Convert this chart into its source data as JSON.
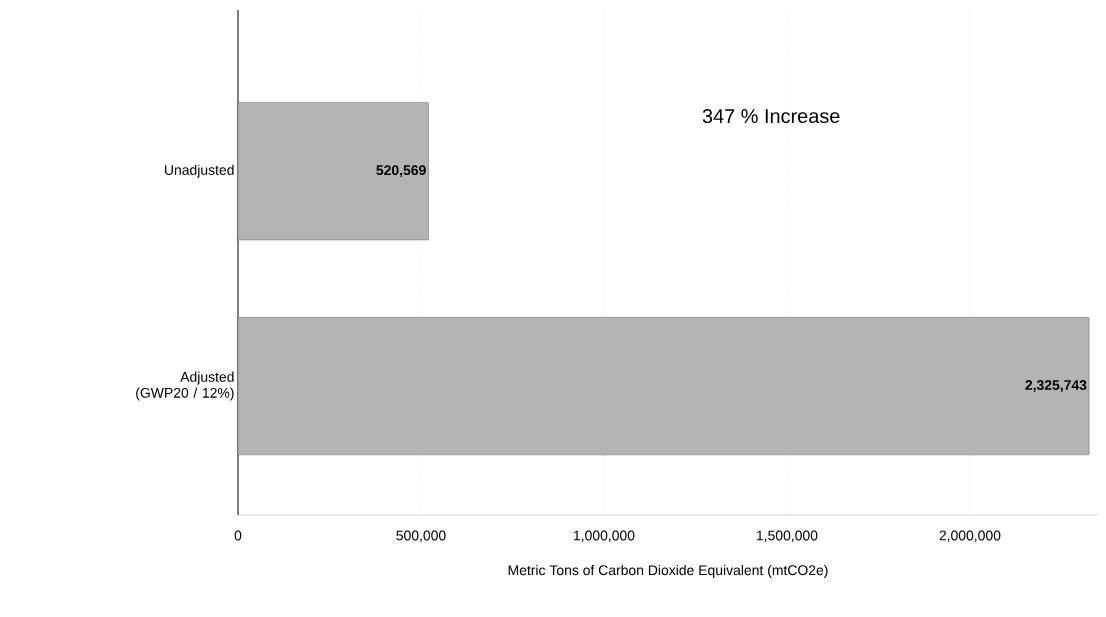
{
  "chart_data": {
    "type": "bar",
    "orientation": "horizontal",
    "categories": [
      "Unadjusted",
      "Adjusted (GWP20 / 12%)"
    ],
    "values": [
      520569,
      2325743
    ],
    "value_labels": [
      "520,569",
      "2,325,743"
    ],
    "color": "#b4b4b4",
    "xlabel": "Metric Tons of Carbon Dioxide Equivalent (mtCO2e)",
    "xlim": [
      0,
      2350000
    ],
    "xticks": [
      0,
      {
        "value": 500000,
        "label": "500,000"
      },
      {
        "value": 1000000,
        "label": "1,000,000"
      },
      {
        "value": 1500000,
        "label": "1,500,000"
      },
      {
        "value": 2000000,
        "label": "2,000,000"
      }
    ],
    "grid": "x",
    "annotations": [
      "347 % Increase"
    ]
  }
}
